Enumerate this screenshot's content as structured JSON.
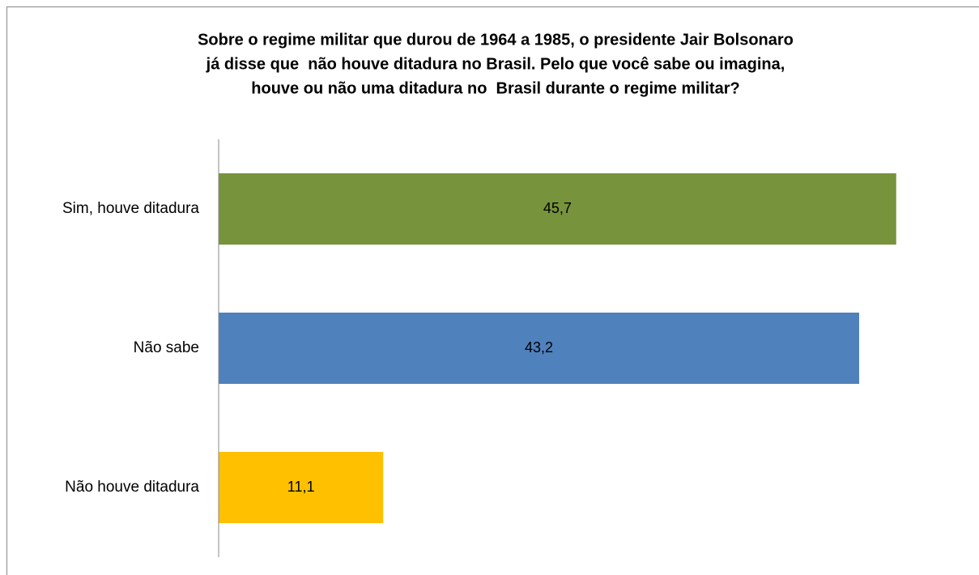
{
  "chart_data": {
    "type": "bar",
    "orientation": "horizontal",
    "title": [
      "Sobre o regime militar que durou de 1964 a 1985, o presidente Jair Bolsonaro",
      "já disse que  não houve ditadura no Brasil. Pelo que você sabe ou imagina,",
      "houve ou não uma ditadura no  Brasil durante o regime militar?"
    ],
    "categories": [
      "Sim, houve ditadura",
      "Não sabe",
      "Não houve ditadura"
    ],
    "values": [
      45.7,
      43.2,
      11.1
    ],
    "value_labels": [
      "45,7",
      "43,2",
      "11,1"
    ],
    "colors": [
      "#77933c",
      "#4f81bd",
      "#ffc000"
    ],
    "xlim": [
      0,
      50
    ]
  }
}
